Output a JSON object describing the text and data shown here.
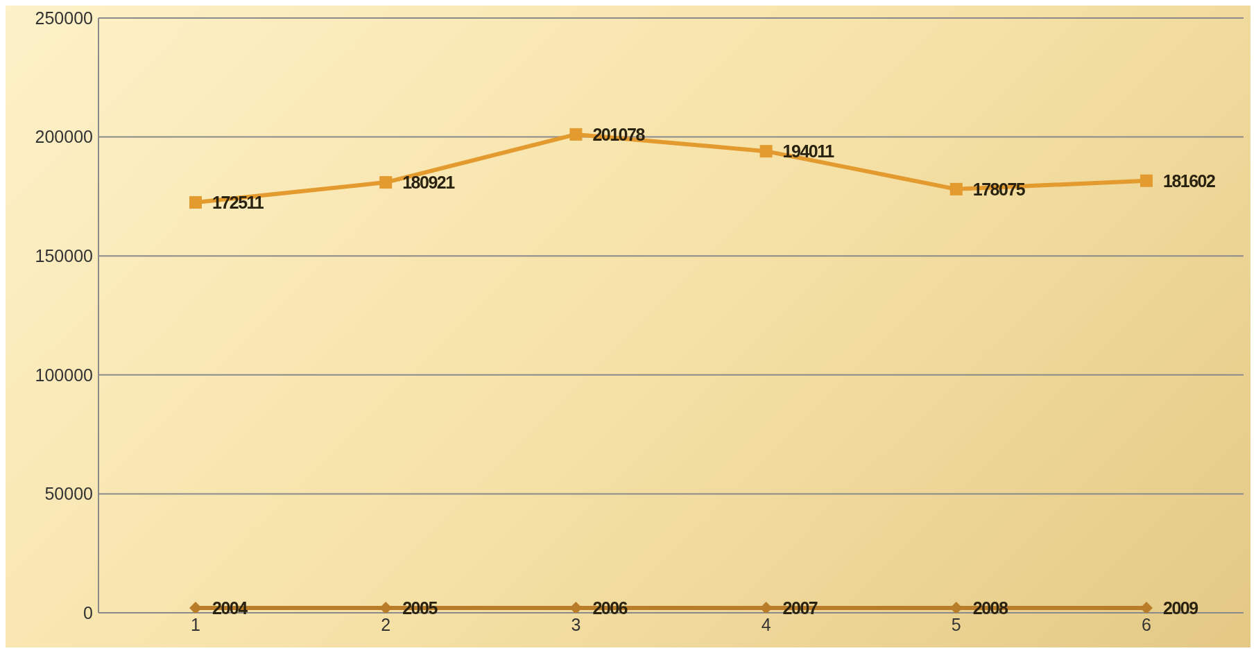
{
  "chart_data": {
    "type": "line",
    "categories": [
      "1",
      "2",
      "3",
      "4",
      "5",
      "6"
    ],
    "series": [
      {
        "color": "#b97d2a",
        "marker": "diamond",
        "values": [
          2004,
          2005,
          2006,
          2007,
          2008,
          2009
        ]
      },
      {
        "color": "#e39a2e",
        "marker": "square",
        "values": [
          172511,
          180921,
          201078,
          194011,
          178075,
          181602
        ]
      }
    ],
    "ylim": [
      0,
      250000
    ],
    "yticks": [
      0,
      50000,
      100000,
      150000,
      200000,
      250000
    ],
    "grid": "y",
    "data_labels": true,
    "line_style": "solid"
  }
}
